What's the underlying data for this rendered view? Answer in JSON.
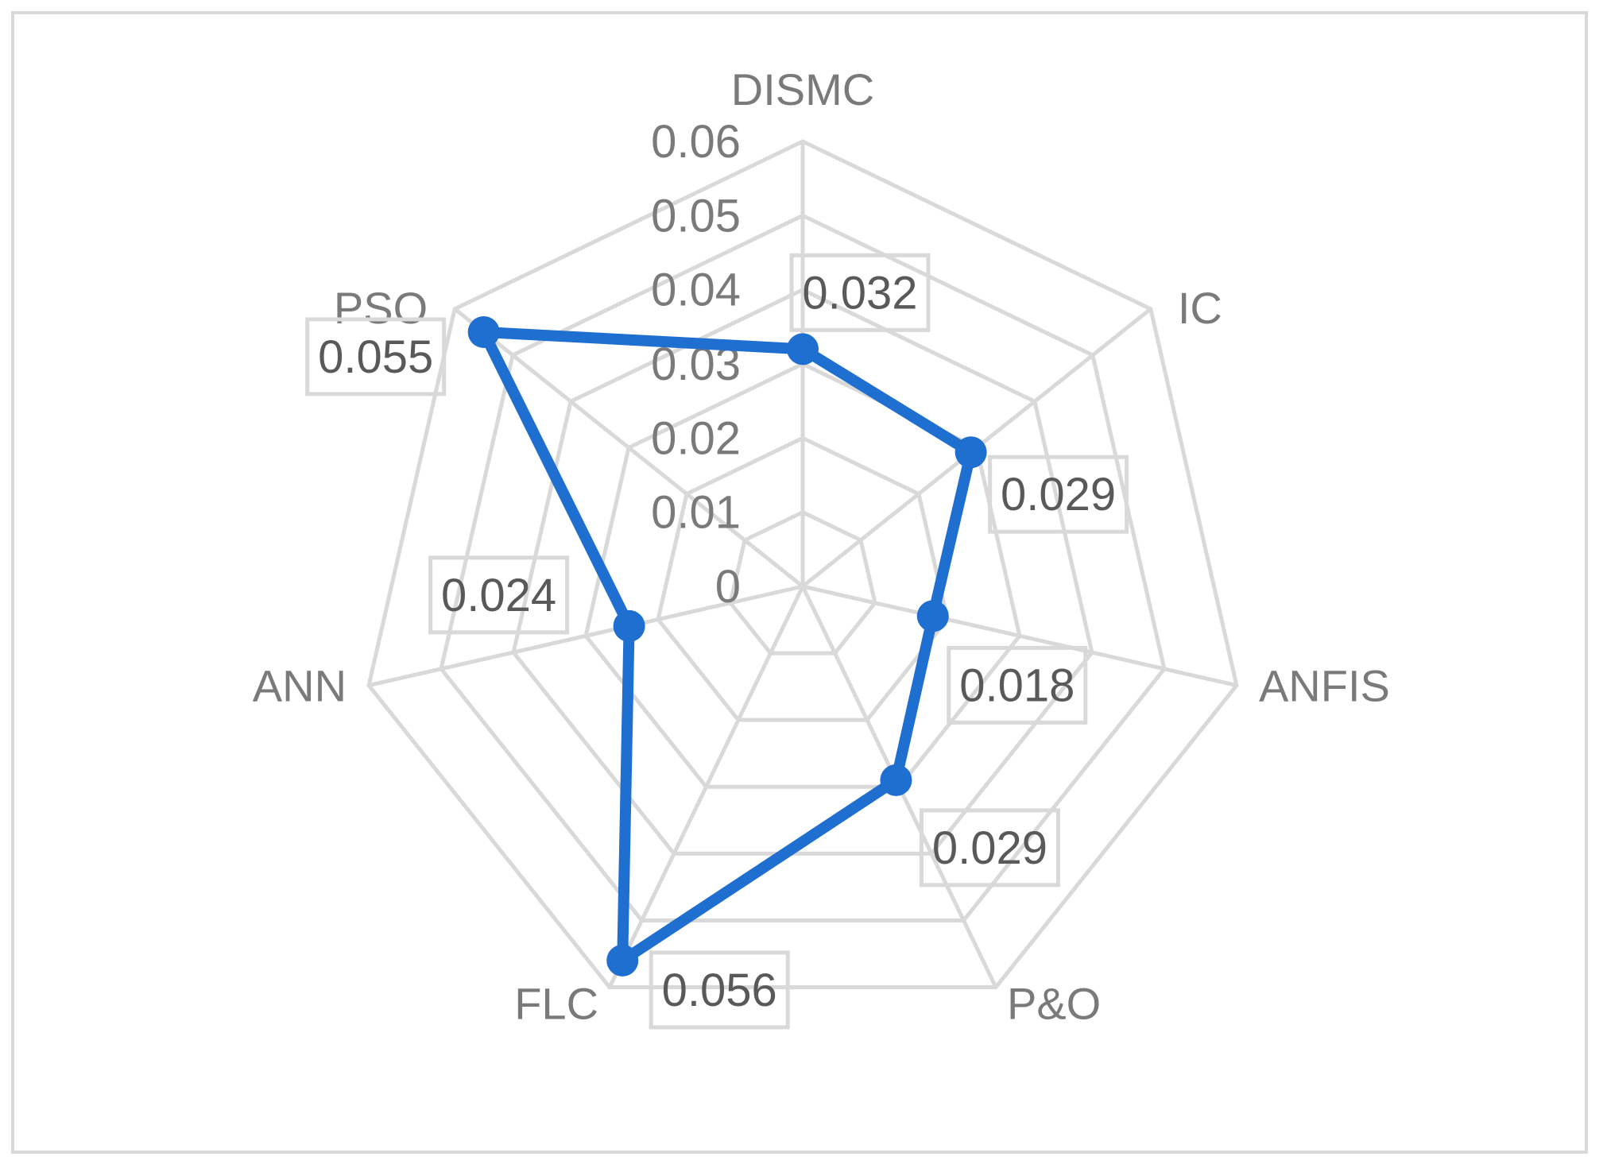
{
  "chart_data": {
    "type": "radar",
    "categories": [
      "DISMC",
      "IC",
      "ANFIS",
      "P&O",
      "FLC",
      "ANN",
      "PSO"
    ],
    "series": [
      {
        "values": [
          0.032,
          0.029,
          0.018,
          0.029,
          0.056,
          0.024,
          0.055
        ],
        "color": "#1f6fd1"
      }
    ],
    "data_labels": [
      "0.032",
      "0.029",
      "0.018",
      "0.029",
      "0.056",
      "0.024",
      "0.055"
    ],
    "radial_ticks": [
      "0",
      "0.01",
      "0.02",
      "0.03",
      "0.04",
      "0.05",
      "0.06"
    ],
    "rlim": [
      0,
      0.06
    ],
    "grid": true,
    "legend": "none"
  }
}
